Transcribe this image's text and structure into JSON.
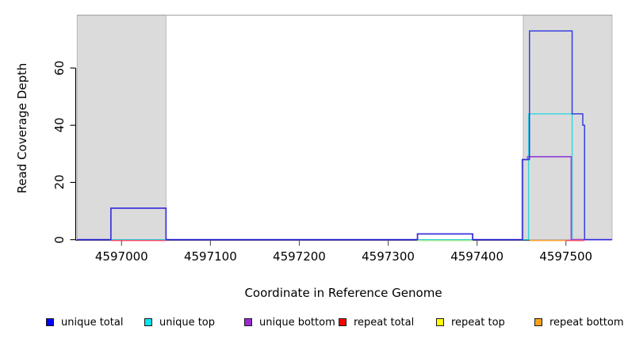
{
  "chart_data": {
    "type": "line",
    "subtype": "step-coverage",
    "title": "",
    "xlabel": "Coordinate in Reference Genome",
    "ylabel": "Read Coverage Depth",
    "xlim": [
      4596950,
      4597552
    ],
    "ylim": [
      0,
      78.5
    ],
    "x_ticks": [
      4597000,
      4597100,
      4597200,
      4597300,
      4597400,
      4597500
    ],
    "y_ticks": [
      0,
      20,
      40,
      60
    ],
    "grid": false,
    "legend_position": "bottom",
    "shaded_regions": [
      {
        "name": "repeat-region-left",
        "x0": 4596950,
        "x1": 4597050,
        "fill": "#dbdbdb"
      },
      {
        "name": "repeat-region-right",
        "x0": 4597452,
        "x1": 4597552,
        "fill": "#dbdbdb"
      }
    ],
    "series": [
      {
        "name": "unique top",
        "color": "#30d5dc",
        "width": 1.4,
        "steps": [
          [
            4596950,
            0
          ],
          [
            4597458,
            44
          ],
          [
            4597507,
            0
          ],
          [
            4597552,
            0
          ]
        ]
      },
      {
        "name": "unique bottom",
        "color": "#9950d8",
        "width": 1.8,
        "steps": [
          [
            4596950,
            0
          ],
          [
            4596988,
            11
          ],
          [
            4597050,
            0
          ],
          [
            4597333,
            2
          ],
          [
            4597395,
            0
          ],
          [
            4597451,
            28
          ],
          [
            4597457,
            29
          ],
          [
            4597506,
            0
          ],
          [
            4597552,
            0
          ]
        ]
      },
      {
        "name": "unique total",
        "color": "#2b35e0",
        "width": 1.4,
        "steps": [
          [
            4596950,
            0
          ],
          [
            4596988,
            11
          ],
          [
            4597050,
            0
          ],
          [
            4597333,
            2
          ],
          [
            4597395,
            0
          ],
          [
            4597451,
            28
          ],
          [
            4597459,
            73
          ],
          [
            4597507,
            44
          ],
          [
            4597519,
            40
          ],
          [
            4597521,
            0
          ],
          [
            4597552,
            0
          ]
        ]
      }
    ],
    "baseline_segments": [
      {
        "name": "repeat total",
        "color": "#f04868",
        "x0": 4596988,
        "x1": 4597050,
        "y": 0
      },
      {
        "name": "unique top + repeat top",
        "color": "#90e890",
        "x0": 4597333,
        "x1": 4597395,
        "y": 0
      },
      {
        "name": "repeat bottom",
        "color": "#ffa030",
        "x0": 4597459,
        "x1": 4597500,
        "y": 0
      },
      {
        "name": "repeat total",
        "color": "#f04868",
        "x0": 4597500,
        "x1": 4597521,
        "y": 0
      }
    ]
  },
  "legend": [
    {
      "label": "unique total",
      "color": "#0000ff"
    },
    {
      "label": "unique top",
      "color": "#00e5ee"
    },
    {
      "label": "unique bottom",
      "color": "#9a2bd2"
    },
    {
      "label": "repeat total",
      "color": "#ff0000"
    },
    {
      "label": "repeat top",
      "color": "#ffff00"
    },
    {
      "label": "repeat bottom",
      "color": "#ffa018"
    }
  ],
  "colors": {
    "shade_fill": "#dbdbdb",
    "shade_edge": "#acacac",
    "top_rule": "#a6a6a6",
    "axis": "#000000",
    "x_tick": "#555555"
  }
}
